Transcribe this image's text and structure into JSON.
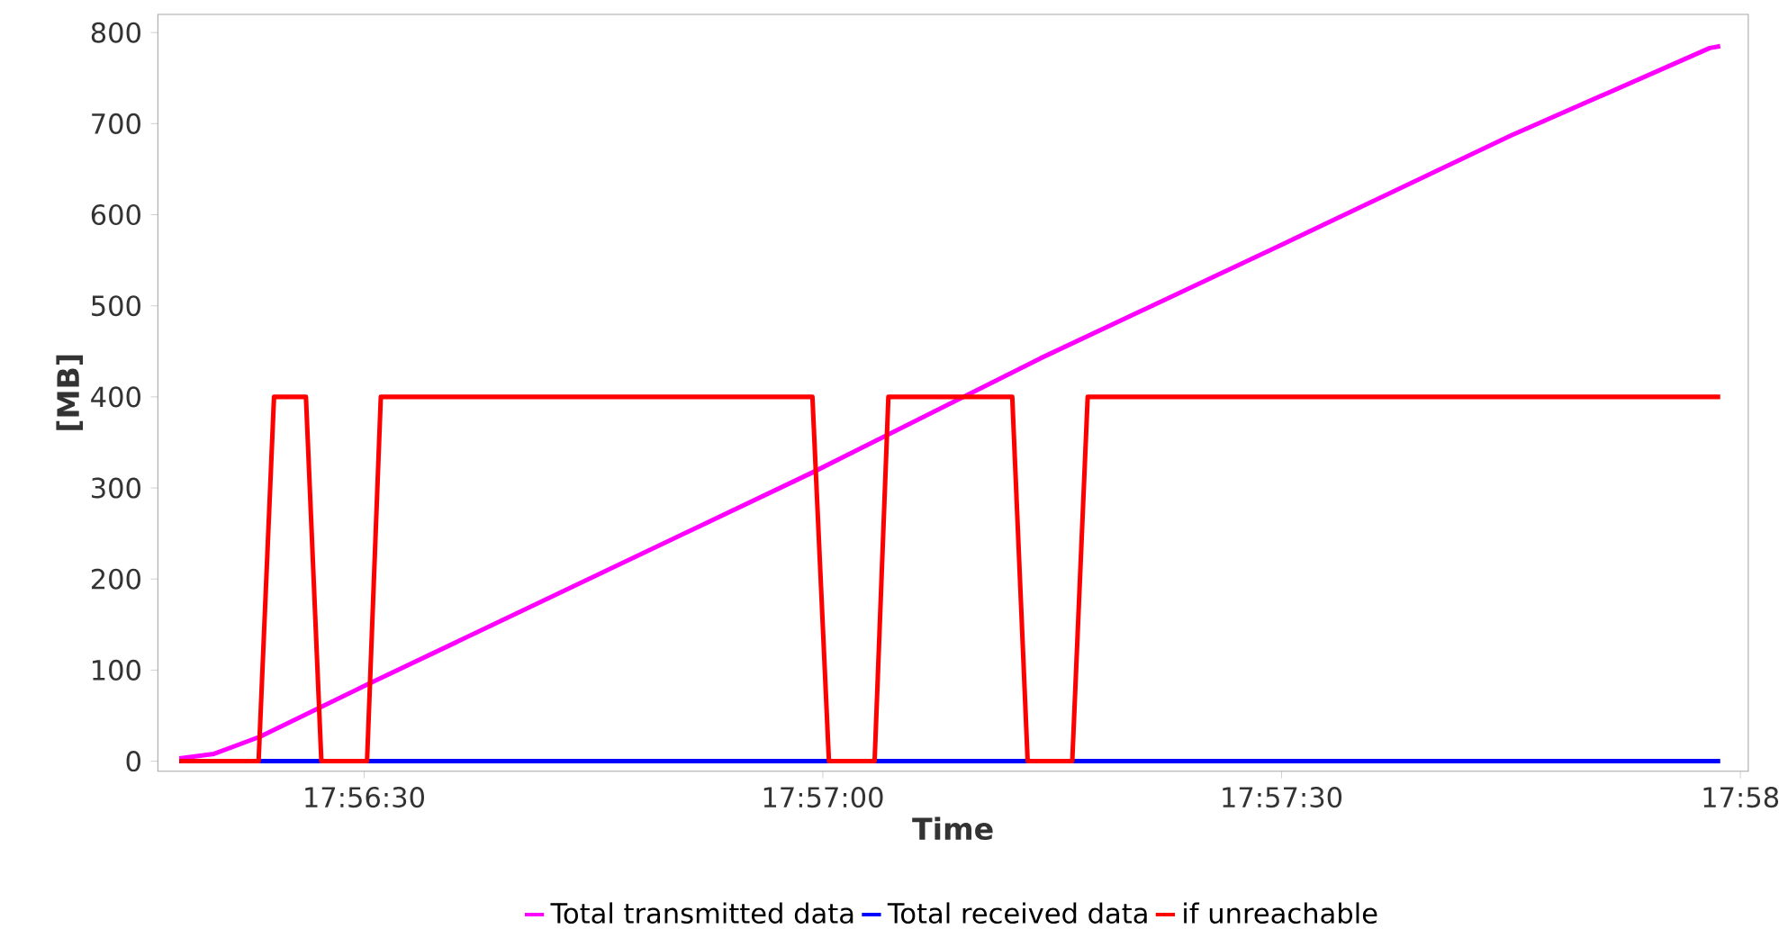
{
  "chart_data": {
    "type": "line",
    "xlabel": "Time",
    "ylabel": "[MB]",
    "legend": "bottom",
    "xlim": [
      17.93792,
      17.96681
    ],
    "ylim": [
      -11,
      820
    ],
    "xticks": [
      {
        "value": 17.941667,
        "label": "17:56:30"
      },
      {
        "value": 17.95,
        "label": "17:57:00"
      },
      {
        "value": 17.958333,
        "label": "17:57:30"
      },
      {
        "value": 17.966667,
        "label": "17:58"
      }
    ],
    "yticks": [
      0,
      100,
      200,
      300,
      400,
      500,
      600,
      700,
      800
    ],
    "series": [
      {
        "name": "Total transmitted data",
        "color": "#ff00ff",
        "x": [
          17.93831,
          17.93894,
          17.93978,
          17.94172,
          17.94981,
          17.95394,
          17.95833,
          17.9625,
          17.96611,
          17.9663
        ],
        "values": [
          3,
          8,
          27,
          84,
          317,
          442,
          567,
          687,
          783,
          785
        ]
      },
      {
        "name": "Total received data",
        "color": "#0000ff",
        "x": [
          17.93831,
          17.9663
        ],
        "values": [
          0,
          0
        ]
      },
      {
        "name": "if unreachable",
        "color": "#ff0000",
        "x": [
          17.93831,
          17.93975,
          17.94003,
          17.94061,
          17.94089,
          17.94172,
          17.94197,
          17.94981,
          17.95011,
          17.95094,
          17.95119,
          17.95344,
          17.95372,
          17.95453,
          17.95481,
          17.9663
        ],
        "values": [
          0,
          0,
          400,
          400,
          0,
          0,
          400,
          400,
          0,
          0,
          400,
          400,
          0,
          0,
          400,
          400
        ]
      }
    ]
  }
}
